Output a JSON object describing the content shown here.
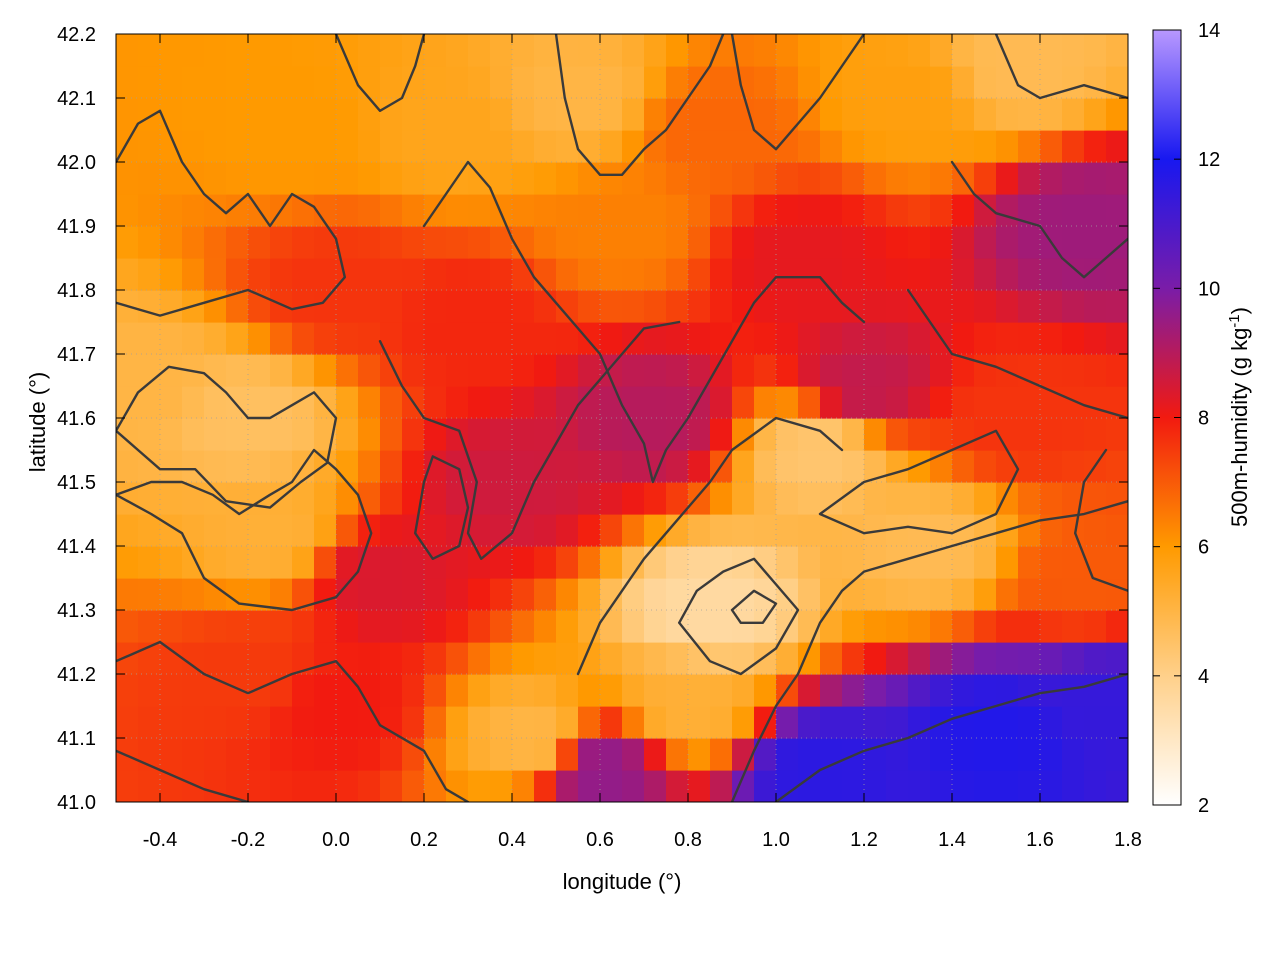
{
  "chart_data": {
    "type": "heatmap",
    "xlabel": "longitude (°)",
    "ylabel": "latitude (°)",
    "colorbar_label": "500m-humidity (g kg",
    "colorbar_label_sup": "-1",
    "colorbar_label_end": ")",
    "xlim": [
      -0.5,
      1.8
    ],
    "ylim": [
      41.0,
      42.2
    ],
    "clim": [
      2,
      14
    ],
    "x_ticks": [
      "-0.4",
      "-0.2",
      "0.0",
      "0.2",
      "0.4",
      "0.6",
      "0.8",
      "1.0",
      "1.2",
      "1.4",
      "1.6",
      "1.8"
    ],
    "x_tick_values": [
      -0.4,
      -0.2,
      0.0,
      0.2,
      0.4,
      0.6,
      0.8,
      1.0,
      1.2,
      1.4,
      1.6,
      1.8
    ],
    "y_ticks": [
      "41.0",
      "41.1",
      "41.2",
      "41.3",
      "41.4",
      "41.5",
      "41.6",
      "41.7",
      "41.8",
      "41.9",
      "42.0",
      "42.1",
      "42.2"
    ],
    "y_tick_values": [
      41.0,
      41.1,
      41.2,
      41.3,
      41.4,
      41.5,
      41.6,
      41.7,
      41.8,
      41.9,
      42.0,
      42.1,
      42.2
    ],
    "colorbar_ticks": [
      "2",
      "4",
      "6",
      "8",
      "10",
      "12",
      "14"
    ],
    "colorbar_tick_values": [
      2,
      4,
      6,
      8,
      10,
      12,
      14
    ],
    "colormap": [
      {
        "value": 2,
        "color": "#ffffff"
      },
      {
        "value": 4,
        "color": "#ffd08a"
      },
      {
        "value": 6,
        "color": "#ff9a00"
      },
      {
        "value": 8,
        "color": "#f21a10"
      },
      {
        "value": 10,
        "color": "#7a1ca8"
      },
      {
        "value": 12,
        "color": "#1818f0"
      },
      {
        "value": 14,
        "color": "#b898ff"
      }
    ],
    "grid": true,
    "field_samples": [
      {
        "lon": -0.45,
        "lat": 41.65,
        "value": 5.0
      },
      {
        "lon": -0.2,
        "lat": 41.6,
        "value": 4.6
      },
      {
        "lon": -0.15,
        "lat": 41.42,
        "value": 5.2
      },
      {
        "lon": -0.2,
        "lat": 41.2,
        "value": 7.5
      },
      {
        "lon": 0.0,
        "lat": 41.15,
        "value": 8.0
      },
      {
        "lon": 0.1,
        "lat": 41.35,
        "value": 8.4
      },
      {
        "lon": 0.0,
        "lat": 41.8,
        "value": 7.6
      },
      {
        "lon": -0.1,
        "lat": 42.05,
        "value": 6.0
      },
      {
        "lon": 0.25,
        "lat": 42.05,
        "value": 5.6
      },
      {
        "lon": 0.45,
        "lat": 41.1,
        "value": 5.0
      },
      {
        "lon": 0.4,
        "lat": 41.5,
        "value": 8.6
      },
      {
        "lon": 0.3,
        "lat": 41.75,
        "value": 7.8
      },
      {
        "lon": 0.55,
        "lat": 42.1,
        "value": 5.0
      },
      {
        "lon": 0.65,
        "lat": 41.9,
        "value": 6.4
      },
      {
        "lon": 0.72,
        "lat": 41.6,
        "value": 9.0
      },
      {
        "lon": 0.6,
        "lat": 41.05,
        "value": 9.6
      },
      {
        "lon": 0.85,
        "lat": 41.3,
        "value": 3.6
      },
      {
        "lon": 0.8,
        "lat": 41.15,
        "value": 5.2
      },
      {
        "lon": 0.85,
        "lat": 42.05,
        "value": 6.8
      },
      {
        "lon": 1.05,
        "lat": 41.85,
        "value": 8.2
      },
      {
        "lon": 1.1,
        "lat": 41.55,
        "value": 4.4
      },
      {
        "lon": 1.1,
        "lat": 41.05,
        "value": 11.6
      },
      {
        "lon": 1.35,
        "lat": 41.4,
        "value": 4.8
      },
      {
        "lon": 1.2,
        "lat": 41.65,
        "value": 8.8
      },
      {
        "lon": 1.3,
        "lat": 42.1,
        "value": 5.8
      },
      {
        "lon": 1.55,
        "lat": 42.15,
        "value": 4.8
      },
      {
        "lon": 1.7,
        "lat": 41.9,
        "value": 9.4
      },
      {
        "lon": 1.55,
        "lat": 41.6,
        "value": 7.6
      },
      {
        "lon": 1.7,
        "lat": 41.35,
        "value": 7.0
      },
      {
        "lon": 1.5,
        "lat": 41.1,
        "value": 11.8
      },
      {
        "lon": 1.75,
        "lat": 41.15,
        "value": 11.4
      }
    ],
    "contours": [
      [
        [
          -0.5,
          42.0
        ],
        [
          -0.45,
          42.06
        ],
        [
          -0.4,
          42.08
        ],
        [
          -0.35,
          42.0
        ],
        [
          -0.3,
          41.95
        ],
        [
          -0.25,
          41.92
        ],
        [
          -0.2,
          41.95
        ],
        [
          -0.15,
          41.9
        ],
        [
          -0.1,
          41.95
        ],
        [
          -0.05,
          41.93
        ],
        [
          0.0,
          41.88
        ],
        [
          0.02,
          41.82
        ],
        [
          -0.03,
          41.78
        ],
        [
          -0.1,
          41.77
        ],
        [
          -0.2,
          41.8
        ],
        [
          -0.3,
          41.78
        ],
        [
          -0.4,
          41.76
        ],
        [
          -0.5,
          41.78
        ]
      ],
      [
        [
          -0.5,
          41.58
        ],
        [
          -0.45,
          41.64
        ],
        [
          -0.38,
          41.68
        ],
        [
          -0.3,
          41.67
        ],
        [
          -0.25,
          41.64
        ],
        [
          -0.2,
          41.6
        ],
        [
          -0.15,
          41.6
        ],
        [
          -0.1,
          41.62
        ],
        [
          -0.05,
          41.64
        ],
        [
          0.0,
          41.6
        ],
        [
          -0.02,
          41.53
        ],
        [
          -0.08,
          41.5
        ],
        [
          -0.15,
          41.46
        ],
        [
          -0.25,
          41.47
        ],
        [
          -0.32,
          41.52
        ],
        [
          -0.4,
          41.52
        ],
        [
          -0.45,
          41.55
        ],
        [
          -0.5,
          41.58
        ]
      ],
      [
        [
          -0.5,
          41.48
        ],
        [
          -0.42,
          41.45
        ],
        [
          -0.35,
          41.42
        ],
        [
          -0.3,
          41.35
        ],
        [
          -0.22,
          41.31
        ],
        [
          -0.1,
          41.3
        ],
        [
          0.0,
          41.32
        ],
        [
          0.05,
          41.36
        ],
        [
          0.08,
          41.42
        ],
        [
          0.05,
          41.48
        ],
        [
          0.0,
          41.52
        ],
        [
          -0.05,
          41.55
        ],
        [
          -0.1,
          41.5
        ],
        [
          -0.15,
          41.48
        ],
        [
          -0.22,
          41.45
        ],
        [
          -0.28,
          41.48
        ],
        [
          -0.35,
          41.5
        ],
        [
          -0.42,
          41.5
        ],
        [
          -0.5,
          41.48
        ]
      ],
      [
        [
          -0.5,
          41.22
        ],
        [
          -0.4,
          41.25
        ],
        [
          -0.3,
          41.2
        ],
        [
          -0.2,
          41.17
        ],
        [
          -0.1,
          41.2
        ],
        [
          0.0,
          41.22
        ],
        [
          0.05,
          41.18
        ],
        [
          0.1,
          41.12
        ],
        [
          0.2,
          41.08
        ],
        [
          0.25,
          41.02
        ],
        [
          0.3,
          41.0
        ]
      ],
      [
        [
          0.0,
          42.2
        ],
        [
          0.05,
          42.12
        ],
        [
          0.1,
          42.08
        ],
        [
          0.15,
          42.1
        ],
        [
          0.18,
          42.15
        ],
        [
          0.2,
          42.2
        ]
      ],
      [
        [
          0.2,
          41.9
        ],
        [
          0.25,
          41.95
        ],
        [
          0.3,
          42.0
        ],
        [
          0.35,
          41.96
        ],
        [
          0.4,
          41.88
        ],
        [
          0.45,
          41.82
        ],
        [
          0.5,
          41.78
        ],
        [
          0.55,
          41.74
        ],
        [
          0.6,
          41.7
        ],
        [
          0.65,
          41.62
        ],
        [
          0.7,
          41.56
        ],
        [
          0.72,
          41.5
        ],
        [
          0.75,
          41.55
        ],
        [
          0.8,
          41.6
        ],
        [
          0.85,
          41.66
        ],
        [
          0.9,
          41.72
        ],
        [
          0.95,
          41.78
        ],
        [
          1.0,
          41.82
        ],
        [
          1.1,
          41.82
        ],
        [
          1.15,
          41.78
        ],
        [
          1.2,
          41.75
        ]
      ],
      [
        [
          0.1,
          41.72
        ],
        [
          0.15,
          41.65
        ],
        [
          0.2,
          41.6
        ],
        [
          0.28,
          41.58
        ],
        [
          0.32,
          41.5
        ],
        [
          0.3,
          41.42
        ],
        [
          0.33,
          41.38
        ],
        [
          0.4,
          41.42
        ],
        [
          0.45,
          41.5
        ],
        [
          0.5,
          41.56
        ],
        [
          0.55,
          41.62
        ],
        [
          0.6,
          41.66
        ],
        [
          0.65,
          41.7
        ],
        [
          0.7,
          41.74
        ],
        [
          0.78,
          41.75
        ]
      ],
      [
        [
          0.2,
          41.5
        ],
        [
          0.18,
          41.42
        ],
        [
          0.22,
          41.38
        ],
        [
          0.28,
          41.4
        ],
        [
          0.3,
          41.46
        ],
        [
          0.28,
          41.52
        ],
        [
          0.22,
          41.54
        ],
        [
          0.2,
          41.5
        ]
      ],
      [
        [
          0.5,
          42.2
        ],
        [
          0.52,
          42.1
        ],
        [
          0.55,
          42.02
        ],
        [
          0.6,
          41.98
        ],
        [
          0.65,
          41.98
        ],
        [
          0.7,
          42.02
        ],
        [
          0.75,
          42.05
        ],
        [
          0.8,
          42.1
        ],
        [
          0.85,
          42.15
        ],
        [
          0.88,
          42.2
        ]
      ],
      [
        [
          0.9,
          42.2
        ],
        [
          0.92,
          42.12
        ],
        [
          0.95,
          42.05
        ],
        [
          1.0,
          42.02
        ],
        [
          1.05,
          42.06
        ],
        [
          1.1,
          42.1
        ],
        [
          1.15,
          42.15
        ],
        [
          1.2,
          42.2
        ]
      ],
      [
        [
          0.55,
          41.2
        ],
        [
          0.6,
          41.28
        ],
        [
          0.65,
          41.33
        ],
        [
          0.7,
          41.38
        ],
        [
          0.75,
          41.42
        ],
        [
          0.8,
          41.46
        ],
        [
          0.85,
          41.5
        ],
        [
          0.9,
          41.55
        ],
        [
          1.0,
          41.6
        ],
        [
          1.1,
          41.58
        ],
        [
          1.15,
          41.55
        ]
      ],
      [
        [
          0.78,
          41.28
        ],
        [
          0.82,
          41.33
        ],
        [
          0.88,
          41.36
        ],
        [
          0.95,
          41.38
        ],
        [
          1.0,
          41.34
        ],
        [
          1.05,
          41.3
        ],
        [
          1.0,
          41.24
        ],
        [
          0.92,
          41.2
        ],
        [
          0.85,
          41.22
        ],
        [
          0.78,
          41.28
        ]
      ],
      [
        [
          0.9,
          41.3
        ],
        [
          0.95,
          41.33
        ],
        [
          1.0,
          41.31
        ],
        [
          0.97,
          41.28
        ],
        [
          0.92,
          41.28
        ],
        [
          0.9,
          41.3
        ]
      ],
      [
        [
          0.9,
          41.0
        ],
        [
          0.95,
          41.08
        ],
        [
          1.0,
          41.15
        ],
        [
          1.05,
          41.2
        ],
        [
          1.1,
          41.28
        ],
        [
          1.15,
          41.33
        ],
        [
          1.2,
          41.36
        ],
        [
          1.3,
          41.38
        ],
        [
          1.4,
          41.4
        ],
        [
          1.5,
          41.42
        ],
        [
          1.6,
          41.44
        ],
        [
          1.7,
          41.45
        ],
        [
          1.8,
          41.47
        ]
      ],
      [
        [
          1.0,
          41.0
        ],
        [
          1.1,
          41.05
        ],
        [
          1.2,
          41.08
        ],
        [
          1.3,
          41.1
        ],
        [
          1.4,
          41.13
        ],
        [
          1.5,
          41.15
        ],
        [
          1.6,
          41.17
        ],
        [
          1.7,
          41.18
        ],
        [
          1.8,
          41.2
        ]
      ],
      [
        [
          1.1,
          41.45
        ],
        [
          1.2,
          41.5
        ],
        [
          1.3,
          41.52
        ],
        [
          1.4,
          41.55
        ],
        [
          1.5,
          41.58
        ],
        [
          1.55,
          41.52
        ],
        [
          1.5,
          41.45
        ],
        [
          1.4,
          41.42
        ],
        [
          1.3,
          41.43
        ],
        [
          1.2,
          41.42
        ],
        [
          1.1,
          41.45
        ]
      ],
      [
        [
          1.3,
          41.8
        ],
        [
          1.35,
          41.75
        ],
        [
          1.4,
          41.7
        ],
        [
          1.5,
          41.68
        ],
        [
          1.6,
          41.65
        ],
        [
          1.7,
          41.62
        ],
        [
          1.8,
          41.6
        ]
      ],
      [
        [
          1.4,
          42.0
        ],
        [
          1.45,
          41.95
        ],
        [
          1.5,
          41.92
        ],
        [
          1.6,
          41.9
        ],
        [
          1.65,
          41.85
        ],
        [
          1.7,
          41.82
        ],
        [
          1.75,
          41.85
        ],
        [
          1.8,
          41.88
        ]
      ],
      [
        [
          1.5,
          42.2
        ],
        [
          1.55,
          42.12
        ],
        [
          1.6,
          42.1
        ],
        [
          1.7,
          42.12
        ],
        [
          1.8,
          42.1
        ]
      ],
      [
        [
          1.75,
          41.55
        ],
        [
          1.7,
          41.5
        ],
        [
          1.68,
          41.42
        ],
        [
          1.72,
          41.35
        ],
        [
          1.8,
          41.33
        ]
      ],
      [
        [
          -0.5,
          41.08
        ],
        [
          -0.4,
          41.05
        ],
        [
          -0.3,
          41.02
        ],
        [
          -0.2,
          41.0
        ]
      ]
    ]
  }
}
